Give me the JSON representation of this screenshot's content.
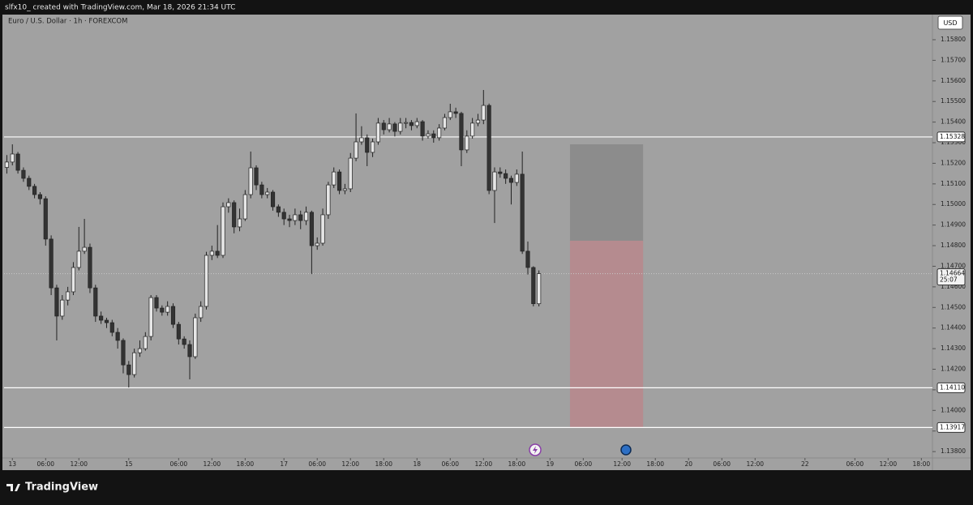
{
  "brand": "TradingView",
  "chart_data": {
    "type": "candlestick",
    "subtitle": "slfx10_ created with TradingView.com, Mar 18, 2026 21:34 UTC",
    "title": "Euro / U.S. Dollar · 1h · FOREXCOM",
    "currency": "USD",
    "up_color": "#e6e6e6",
    "down_color": "#333333",
    "x": [
      -3,
      -2,
      -1,
      0,
      1,
      2,
      3,
      4,
      5,
      6,
      7,
      8,
      9,
      10,
      11,
      12,
      13,
      14,
      15,
      16,
      17,
      18,
      19,
      20,
      21,
      22,
      23,
      24,
      25,
      26,
      27,
      28,
      29,
      30,
      31,
      32,
      33,
      34,
      35,
      36,
      37,
      38,
      39,
      40,
      41,
      42,
      43,
      44,
      45,
      46,
      47,
      48,
      49,
      50,
      51,
      52,
      53,
      54,
      55,
      56,
      57,
      58,
      59,
      60,
      61,
      62,
      63,
      64,
      65,
      66,
      67,
      68,
      69,
      70,
      71,
      72,
      73,
      74,
      75,
      76,
      77,
      78,
      79,
      80,
      81,
      82,
      83,
      84,
      85,
      86,
      87,
      88,
      89,
      90,
      91,
      92,
      93
    ],
    "open": [
      1.1518,
      1.15206,
      1.15245,
      1.15166,
      1.15127,
      1.15088,
      1.15048,
      1.15028,
      1.14832,
      1.14595,
      1.14458,
      1.14536,
      1.14576,
      1.14694,
      1.14773,
      1.14792,
      1.14595,
      1.14458,
      1.14438,
      1.14426,
      1.14379,
      1.1434,
      1.14221,
      1.14174,
      1.1428,
      1.143,
      1.14359,
      1.14548,
      1.14497,
      1.14477,
      1.14505,
      1.14418,
      1.14347,
      1.1432,
      1.14261,
      1.1445,
      1.14505,
      1.14753,
      1.14773,
      1.14753,
      1.14989,
      1.15009,
      1.14891,
      1.1493,
      1.15048,
      1.15178,
      1.15095,
      1.15048,
      1.1506,
      1.14989,
      1.14962,
      1.1493,
      1.14922,
      1.1495,
      1.14922,
      1.14962,
      1.148,
      1.14812,
      1.1495,
      1.15095,
      1.15158,
      1.15068,
      1.15076,
      1.15225,
      1.15304,
      1.15324,
      1.15253,
      1.15304,
      1.15395,
      1.15363,
      1.15391,
      1.15355,
      1.15395,
      1.15398,
      1.15383,
      1.15402,
      1.15332,
      1.15343,
      1.15324,
      1.15371,
      1.15422,
      1.1545,
      1.15442,
      1.15265,
      1.15332,
      1.15395,
      1.1541,
      1.15481,
      1.15068,
      1.15158,
      1.1515,
      1.15127,
      1.15107,
      1.15147,
      1.14773,
      1.14694,
      1.14518
    ],
    "high": [
      1.1524,
      1.15292,
      1.15255,
      1.1518,
      1.1514,
      1.151,
      1.1506,
      1.1504,
      1.1485,
      1.1461,
      1.1456,
      1.146,
      1.1472,
      1.14891,
      1.1493,
      1.1481,
      1.1461,
      1.1448,
      1.1445,
      1.1444,
      1.144,
      1.1435,
      1.1424,
      1.143,
      1.1434,
      1.1438,
      1.1456,
      1.1456,
      1.1451,
      1.1453,
      1.1452,
      1.1443,
      1.1436,
      1.1434,
      1.1447,
      1.1453,
      1.1477,
      1.148,
      1.149,
      1.1501,
      1.1503,
      1.1502,
      1.1498,
      1.1507,
      1.15257,
      1.1519,
      1.1511,
      1.1508,
      1.1507,
      1.15,
      1.1498,
      1.1495,
      1.1498,
      1.1497,
      1.1499,
      1.1497,
      1.1484,
      1.1498,
      1.1511,
      1.1518,
      1.1517,
      1.151,
      1.1525,
      1.15442,
      1.1538,
      1.1534,
      1.1532,
      1.1542,
      1.1541,
      1.1542,
      1.154,
      1.1542,
      1.1542,
      1.1541,
      1.1542,
      1.1541,
      1.1536,
      1.1536,
      1.1539,
      1.1544,
      1.15489,
      1.1547,
      1.1545,
      1.1536,
      1.1542,
      1.1544,
      1.15556,
      1.1549,
      1.1518,
      1.1518,
      1.1517,
      1.1514,
      1.1517,
      1.15257,
      1.1482,
      1.147,
      1.1468
    ],
    "low": [
      1.1515,
      1.1519,
      1.1515,
      1.1511,
      1.1507,
      1.1503,
      1.15,
      1.148,
      1.1456,
      1.1434,
      1.1444,
      1.1451,
      1.1456,
      1.1468,
      1.1476,
      1.1457,
      1.1443,
      1.1442,
      1.144,
      1.1436,
      1.143,
      1.1418,
      1.14111,
      1.1416,
      1.1426,
      1.1429,
      1.1434,
      1.1448,
      1.1446,
      1.1446,
      1.144,
      1.1432,
      1.143,
      1.14151,
      1.1425,
      1.1443,
      1.1449,
      1.1473,
      1.1474,
      1.1474,
      1.1496,
      1.1486,
      1.1487,
      1.1492,
      1.1503,
      1.1507,
      1.1503,
      1.1503,
      1.1497,
      1.1494,
      1.149,
      1.1489,
      1.149,
      1.1488,
      1.149,
      1.14662,
      1.1478,
      1.148,
      1.1493,
      1.1508,
      1.1505,
      1.1505,
      1.1506,
      1.1521,
      1.1529,
      1.15186,
      1.1523,
      1.1529,
      1.1534,
      1.1535,
      1.1533,
      1.1534,
      1.1537,
      1.1536,
      1.1537,
      1.1531,
      1.1532,
      1.153,
      1.1531,
      1.1536,
      1.1541,
      1.1542,
      1.15186,
      1.1525,
      1.1532,
      1.1538,
      1.1539,
      1.1505,
      1.1491,
      1.1513,
      1.151,
      1.15,
      1.1509,
      1.1476,
      1.1466,
      1.14505,
      1.14505
    ],
    "close": [
      1.15206,
      1.15245,
      1.15166,
      1.15127,
      1.15088,
      1.15048,
      1.15028,
      1.14832,
      1.14595,
      1.14458,
      1.14536,
      1.14576,
      1.14694,
      1.14773,
      1.14792,
      1.14595,
      1.14458,
      1.14438,
      1.14426,
      1.14379,
      1.1434,
      1.14221,
      1.14174,
      1.1428,
      1.143,
      1.14359,
      1.14548,
      1.14497,
      1.14477,
      1.14505,
      1.14418,
      1.14347,
      1.1432,
      1.14261,
      1.1445,
      1.14505,
      1.14753,
      1.14773,
      1.14753,
      1.14989,
      1.15009,
      1.14891,
      1.1493,
      1.15048,
      1.15178,
      1.15095,
      1.15048,
      1.1506,
      1.14989,
      1.14962,
      1.1493,
      1.14922,
      1.1495,
      1.14922,
      1.14962,
      1.148,
      1.14812,
      1.1495,
      1.15095,
      1.15158,
      1.15068,
      1.15076,
      1.15225,
      1.15304,
      1.15324,
      1.15253,
      1.15304,
      1.15395,
      1.15363,
      1.15391,
      1.15355,
      1.15395,
      1.15398,
      1.15383,
      1.15402,
      1.15332,
      1.15343,
      1.15324,
      1.15371,
      1.15422,
      1.1545,
      1.15442,
      1.15265,
      1.15332,
      1.15395,
      1.1541,
      1.15481,
      1.15068,
      1.15158,
      1.1515,
      1.15127,
      1.15107,
      1.15147,
      1.14773,
      1.14694,
      1.14518,
      1.14664
    ],
    "xlim": [
      -3.5,
      164
    ],
    "xticks": [
      {
        "value": -2,
        "label": "13"
      },
      {
        "value": 4,
        "label": "06:00"
      },
      {
        "value": 10,
        "label": "12:00"
      },
      {
        "value": 19,
        "label": "15"
      },
      {
        "value": 28,
        "label": "06:00"
      },
      {
        "value": 34,
        "label": "12:00"
      },
      {
        "value": 40,
        "label": "18:00"
      },
      {
        "value": 47,
        "label": "17"
      },
      {
        "value": 53,
        "label": "06:00"
      },
      {
        "value": 59,
        "label": "12:00"
      },
      {
        "value": 65,
        "label": "18:00"
      },
      {
        "value": 71,
        "label": "18"
      },
      {
        "value": 77,
        "label": "06:00"
      },
      {
        "value": 83,
        "label": "12:00"
      },
      {
        "value": 89,
        "label": "18:00"
      },
      {
        "value": 95,
        "label": "19"
      },
      {
        "value": 101,
        "label": "06:00"
      },
      {
        "value": 108,
        "label": "12:00"
      },
      {
        "value": 114,
        "label": "18:00"
      },
      {
        "value": 120,
        "label": "20"
      },
      {
        "value": 126,
        "label": "06:00"
      },
      {
        "value": 132,
        "label": "12:00"
      },
      {
        "value": 141,
        "label": "22"
      },
      {
        "value": 150,
        "label": "06:00"
      },
      {
        "value": 156,
        "label": "12:00"
      },
      {
        "value": 162,
        "label": "18:00"
      }
    ],
    "ylim": [
      1.13769,
      1.15922
    ],
    "yticks": [
      {
        "value": 1.138,
        "label": "1.13800"
      },
      {
        "value": 1.139,
        "label": "1.13900"
      },
      {
        "value": 1.14,
        "label": "1.14000"
      },
      {
        "value": 1.141,
        "label": "1.14100"
      },
      {
        "value": 1.142,
        "label": "1.14200"
      },
      {
        "value": 1.143,
        "label": "1.14300"
      },
      {
        "value": 1.144,
        "label": "1.14400"
      },
      {
        "value": 1.145,
        "label": "1.14500"
      },
      {
        "value": 1.146,
        "label": "1.14600"
      },
      {
        "value": 1.147,
        "label": "1.14700"
      },
      {
        "value": 1.148,
        "label": "1.14800"
      },
      {
        "value": 1.149,
        "label": "1.14900"
      },
      {
        "value": 1.15,
        "label": "1.15000"
      },
      {
        "value": 1.151,
        "label": "1.15100"
      },
      {
        "value": 1.152,
        "label": "1.15200"
      },
      {
        "value": 1.153,
        "label": "1.15300"
      },
      {
        "value": 1.154,
        "label": "1.15400"
      },
      {
        "value": 1.155,
        "label": "1.15500"
      },
      {
        "value": 1.156,
        "label": "1.15600"
      },
      {
        "value": 1.157,
        "label": "1.15700"
      },
      {
        "value": 1.158,
        "label": "1.15800"
      }
    ],
    "levels": [
      {
        "value": 1.15328,
        "label": "1.15328"
      },
      {
        "value": 1.1411,
        "label": "1.14110"
      },
      {
        "value": 1.13917,
        "label": "1.13917"
      }
    ],
    "last_price": {
      "value": 1.14664,
      "label": "1.14664",
      "countdown": "25:07"
    },
    "position": {
      "start": 98.6,
      "end": 111.8,
      "stop": 1.15292,
      "entry": 1.14824,
      "target": 1.13917
    }
  }
}
